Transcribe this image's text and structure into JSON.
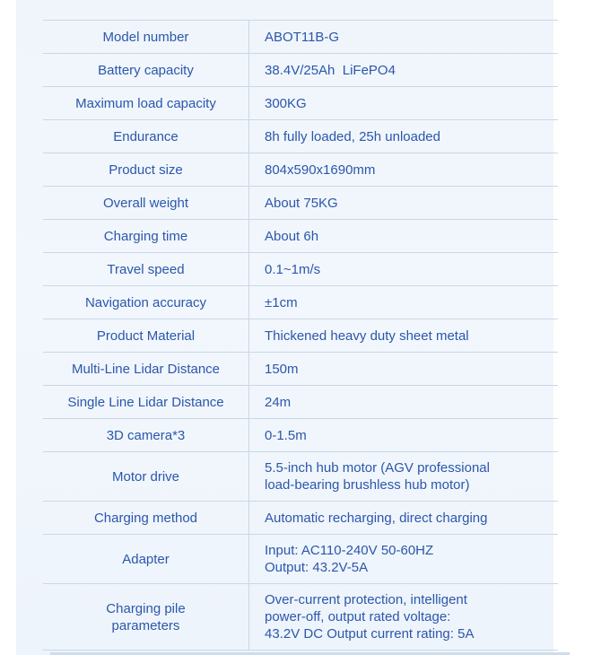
{
  "colors": {
    "page_background": "#ffffff",
    "panel_background": "#f0f5fc",
    "text_blue": "#2b57ab",
    "grid_line": "#c9d7e8",
    "bottom_strip": "#cfdced"
  },
  "spec_table": {
    "rows": [
      {
        "label": "Model number",
        "value": "ABOT11B-G"
      },
      {
        "label": "Battery capacity",
        "value": "38.4V/25Ah  LiFePO4"
      },
      {
        "label": "Maximum load capacity",
        "value": "300KG"
      },
      {
        "label": "Endurance",
        "value": "8h fully loaded, 25h unloaded"
      },
      {
        "label": "Product size",
        "value": "804x590x1690mm"
      },
      {
        "label": "Overall weight",
        "value": "About 75KG"
      },
      {
        "label": "Charging time",
        "value": "About 6h"
      },
      {
        "label": "Travel speed",
        "value": "0.1~1m/s"
      },
      {
        "label": "Navigation accuracy",
        "value": "±1cm"
      },
      {
        "label": "Product Material",
        "value": "Thickened heavy duty sheet metal"
      },
      {
        "label": "Multi-Line Lidar Distance",
        "value": "150m"
      },
      {
        "label": "Single Line Lidar Distance",
        "value": "24m"
      },
      {
        "label": "3D camera*3",
        "value": "0-1.5m"
      },
      {
        "label": "Motor drive",
        "value": "5.5-inch hub motor (AGV professional\nload-bearing brushless hub motor)"
      },
      {
        "label": "Charging method",
        "value": "Automatic recharging, direct charging"
      },
      {
        "label": "Adapter",
        "value": "Input: AC110-240V 50-60HZ\nOutput: 43.2V-5A"
      },
      {
        "label": "Charging pile\nparameters",
        "value": "Over-current protection, intelligent\npower-off, output rated voltage:\n43.2V DC Output current rating: 5A"
      }
    ]
  }
}
